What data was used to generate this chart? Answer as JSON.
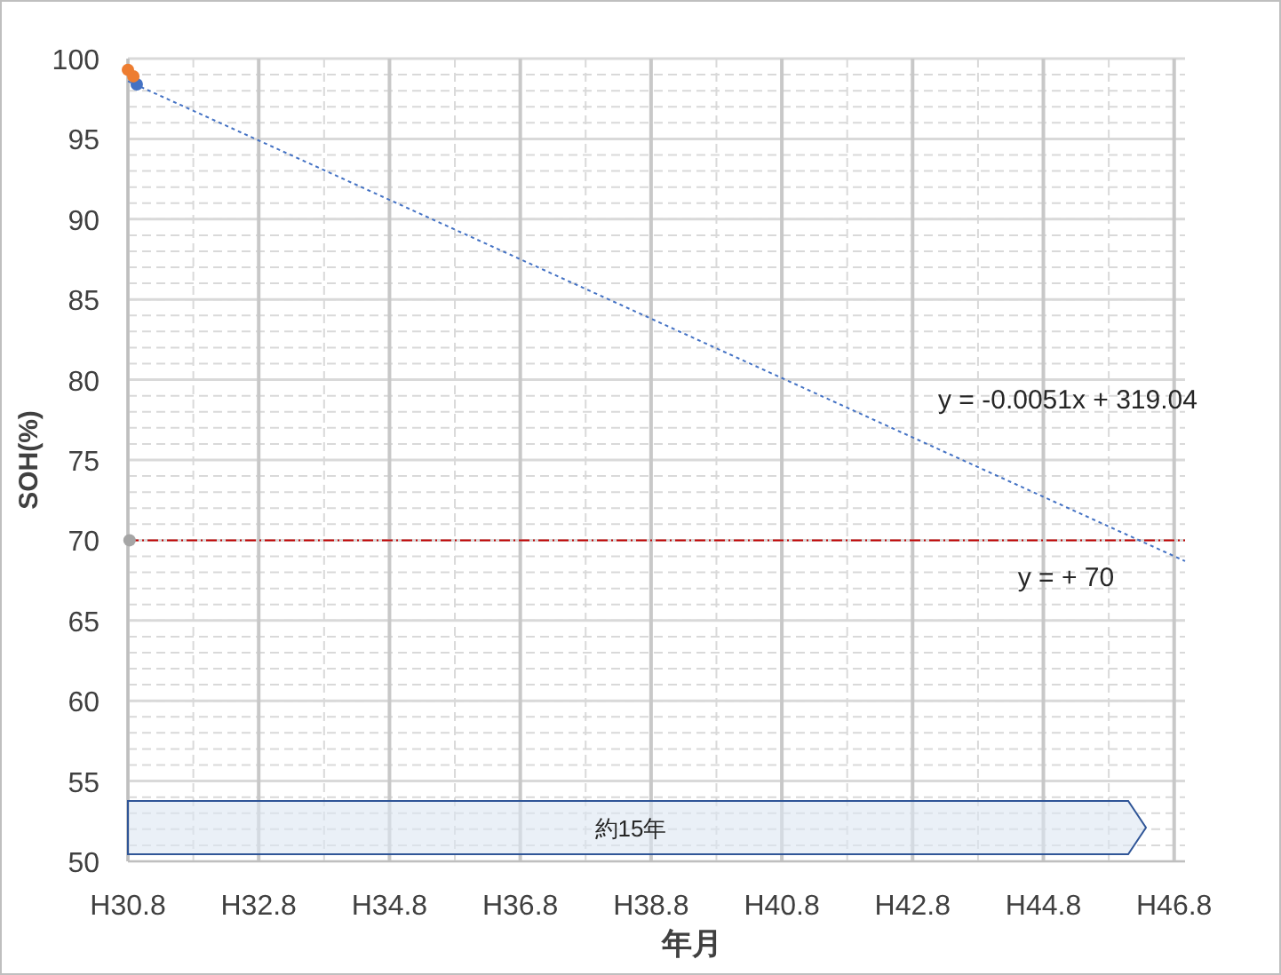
{
  "chart_data": {
    "type": "scatter",
    "xlabel": "年月",
    "ylabel": "SOH(%)",
    "xlim": [
      "2018-08",
      "2034-10"
    ],
    "ylim": [
      50,
      100
    ],
    "xticks": [
      {
        "value": "2018-08",
        "label": "H30.8"
      },
      {
        "value": "2020-08",
        "label": "H32.8"
      },
      {
        "value": "2022-08",
        "label": "H34.8"
      },
      {
        "value": "2024-08",
        "label": "H36.8"
      },
      {
        "value": "2026-08",
        "label": "H38.8"
      },
      {
        "value": "2028-08",
        "label": "H40.8"
      },
      {
        "value": "2030-08",
        "label": "H42.8"
      },
      {
        "value": "2032-08",
        "label": "H44.8"
      },
      {
        "value": "2034-08",
        "label": "H46.8"
      }
    ],
    "yticks": [
      50,
      55,
      60,
      65,
      70,
      75,
      80,
      85,
      90,
      95,
      100
    ],
    "grid": true,
    "marker": "circle",
    "series": [
      {
        "type": "line",
        "color": "#4472c4",
        "line_style": "dotted",
        "marker": "none",
        "x": [
          "2018-08",
          "2034-10"
        ],
        "values": [
          98.6,
          68.7
        ]
      },
      {
        "color": "#4472c4",
        "x": [
          "2018-09-20"
        ],
        "values": [
          98.4
        ]
      },
      {
        "color": "#ed7d31",
        "x": [
          "2018-08",
          "2018-09"
        ],
        "values": [
          99.3,
          98.9
        ]
      },
      {
        "color": "#a5a5a5",
        "x": [
          "2018-08-10"
        ],
        "values": [
          70
        ]
      }
    ],
    "ref_lines": [
      {
        "axis": "y",
        "value": 70,
        "color": "#c00000",
        "line_style": "dashed"
      }
    ],
    "annotations": [
      "y = -0.0051x + 319.04",
      "y = + 70",
      "約15年"
    ]
  }
}
